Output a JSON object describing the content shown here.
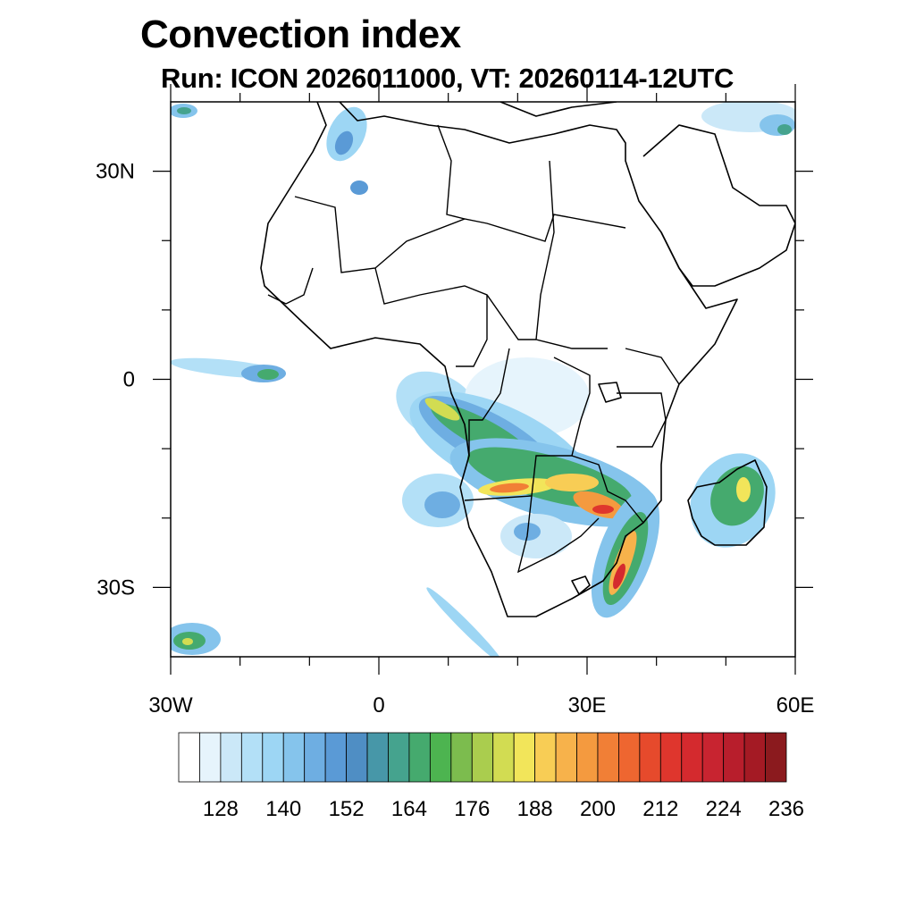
{
  "header": {
    "title": "Convection index",
    "subtitle": "Run: ICON 2026011000,  VT: 20260114-12UTC"
  },
  "map": {
    "lon_range": [
      -30,
      60
    ],
    "lat_range": [
      -40,
      40
    ],
    "lat_labels": [
      {
        "lat": 30,
        "text": "30N"
      },
      {
        "lat": 0,
        "text": "0"
      },
      {
        "lat": -30,
        "text": "30S"
      }
    ],
    "lon_labels": [
      {
        "lon": -30,
        "text": "30W"
      },
      {
        "lon": 0,
        "text": "0"
      },
      {
        "lon": 30,
        "text": "30E"
      },
      {
        "lon": 60,
        "text": "60E"
      }
    ],
    "minor_lon_ticks": [
      -20,
      -10,
      10,
      20,
      40,
      50
    ],
    "minor_lat_ticks": [
      20,
      10,
      -10,
      -20
    ]
  },
  "colorbar": {
    "colors": [
      "#ffffff",
      "#e6f4fc",
      "#cbe8f8",
      "#b3e0f7",
      "#9dd6f4",
      "#85c4ec",
      "#6eaee2",
      "#5a9ad6",
      "#4f8ec4",
      "#4797a8",
      "#45a38e",
      "#45aa6e",
      "#4db450",
      "#7cbc4e",
      "#aacd4e",
      "#d2dc52",
      "#f2e55a",
      "#f8cd55",
      "#f7b24b",
      "#f49a3f",
      "#f17f36",
      "#ee6630",
      "#e64a2c",
      "#df362d",
      "#d42a2e",
      "#c82430",
      "#b81e2c",
      "#a41a24",
      "#8b1a1e"
    ],
    "labels": [
      "128",
      "140",
      "152",
      "164",
      "176",
      "188",
      "200",
      "212",
      "224",
      "236"
    ]
  }
}
